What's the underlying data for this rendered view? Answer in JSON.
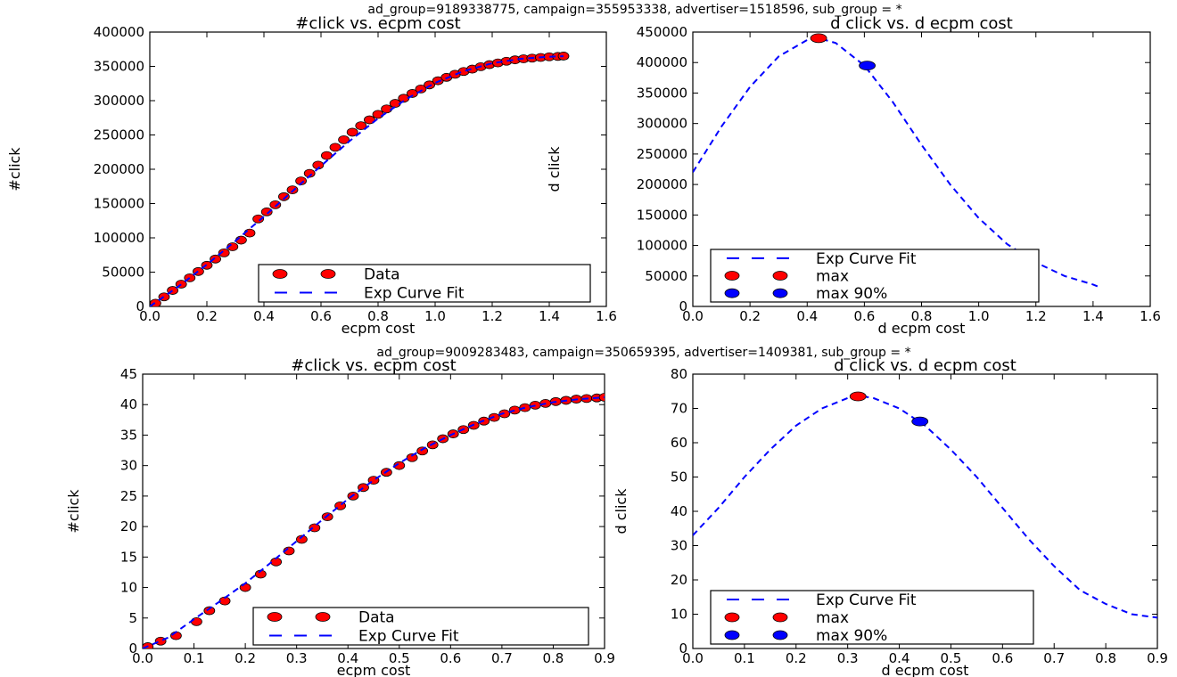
{
  "figure": {
    "group_titles": [
      "ad_group=9189338775, campaign=355953338, advertiser=1518596, sub_group = *",
      "ad_group=9009283483, campaign=350659395, advertiser=1409381, sub_group = *"
    ]
  },
  "colors": {
    "data": "#ff0000",
    "fit": "#0000ff",
    "max": "#ff0000",
    "max90": "#0000ff"
  },
  "chart_data": [
    {
      "type": "scatter",
      "title": "#click vs. ecpm cost",
      "xlabel": "ecpm cost",
      "ylabel": "#click",
      "xlim": [
        0,
        1.6
      ],
      "ylim": [
        0,
        400000
      ],
      "xticks": [
        "0.0",
        "0.2",
        "0.4",
        "0.6",
        "0.8",
        "1.0",
        "1.2",
        "1.4",
        "1.6"
      ],
      "yticks": [
        "0",
        "50000",
        "100000",
        "150000",
        "200000",
        "250000",
        "300000",
        "350000",
        "400000"
      ],
      "legend": {
        "position": "lower-right",
        "entries": [
          "Data",
          "Exp Curve Fit"
        ]
      },
      "series": [
        {
          "name": "Data",
          "kind": "points",
          "x": [
            0.02,
            0.05,
            0.08,
            0.11,
            0.14,
            0.17,
            0.2,
            0.23,
            0.26,
            0.29,
            0.32,
            0.35,
            0.38,
            0.41,
            0.44,
            0.47,
            0.5,
            0.53,
            0.56,
            0.59,
            0.62,
            0.65,
            0.68,
            0.71,
            0.74,
            0.77,
            0.8,
            0.83,
            0.86,
            0.89,
            0.92,
            0.95,
            0.98,
            1.01,
            1.04,
            1.07,
            1.1,
            1.13,
            1.16,
            1.19,
            1.22,
            1.25,
            1.28,
            1.31,
            1.34,
            1.37,
            1.4,
            1.43,
            1.45
          ],
          "y": [
            4700,
            14000,
            23300,
            32500,
            41700,
            50900,
            60000,
            69100,
            78100,
            87000,
            96700,
            107000,
            127600,
            137900,
            148200,
            160000,
            170000,
            183000,
            194000,
            206000,
            220000,
            232000,
            243000,
            254000,
            263500,
            272000,
            280000,
            288000,
            296000,
            303500,
            310500,
            317000,
            323000,
            329000,
            334000,
            338500,
            342500,
            346000,
            349500,
            352500,
            355000,
            357500,
            359500,
            361000,
            362000,
            363000,
            364000,
            364500,
            365000
          ]
        },
        {
          "name": "Exp Curve Fit",
          "kind": "line",
          "style": "dashed",
          "x": [
            0.0,
            0.1,
            0.2,
            0.3,
            0.4,
            0.5,
            0.6,
            0.7,
            0.8,
            0.9,
            1.0,
            1.1,
            1.2,
            1.3,
            1.4,
            1.45
          ],
          "y": [
            0,
            29000,
            61000,
            95500,
            131000,
            168000,
            205000,
            241000,
            274000,
            302500,
            326000,
            343000,
            354500,
            361000,
            364000,
            364800
          ]
        }
      ]
    },
    {
      "type": "scatter",
      "title": "d click vs. d ecpm cost",
      "xlabel": "d ecpm cost",
      "ylabel": "d click",
      "xlim": [
        0,
        1.6
      ],
      "ylim": [
        0,
        450000
      ],
      "xticks": [
        "0.0",
        "0.2",
        "0.4",
        "0.6",
        "0.8",
        "1.0",
        "1.2",
        "1.4",
        "1.6"
      ],
      "yticks": [
        "0",
        "50000",
        "100000",
        "150000",
        "200000",
        "250000",
        "300000",
        "350000",
        "400000",
        "450000"
      ],
      "legend": {
        "position": "lower-center",
        "entries": [
          "Exp Curve Fit",
          "max",
          "max 90%"
        ]
      },
      "series": [
        {
          "name": "Exp Curve Fit",
          "kind": "line",
          "style": "dashed",
          "x": [
            0.0,
            0.1,
            0.2,
            0.3,
            0.4,
            0.44,
            0.5,
            0.6,
            0.7,
            0.8,
            0.9,
            1.0,
            1.1,
            1.2,
            1.3,
            1.4,
            1.42
          ],
          "y": [
            220000,
            295000,
            360000,
            410000,
            437000,
            440000,
            432000,
            395000,
            335000,
            265000,
            200000,
            145000,
            102000,
            72000,
            50000,
            36000,
            32000
          ]
        },
        {
          "name": "max",
          "kind": "marker",
          "x": [
            0.44
          ],
          "y": [
            440000
          ]
        },
        {
          "name": "max 90%",
          "kind": "marker",
          "x": [
            0.61
          ],
          "y": [
            395000
          ]
        }
      ]
    },
    {
      "type": "scatter",
      "title": "#click vs. ecpm cost",
      "xlabel": "ecpm cost",
      "ylabel": "#click",
      "xlim": [
        0,
        0.9
      ],
      "ylim": [
        0,
        45
      ],
      "xticks": [
        "0.0",
        "0.1",
        "0.2",
        "0.3",
        "0.4",
        "0.5",
        "0.6",
        "0.7",
        "0.8",
        "0.9"
      ],
      "yticks": [
        "0",
        "5",
        "10",
        "15",
        "20",
        "25",
        "30",
        "35",
        "40",
        "45"
      ],
      "legend": {
        "position": "lower-right",
        "entries": [
          "Data",
          "Exp Curve Fit"
        ]
      },
      "series": [
        {
          "name": "Data",
          "kind": "points",
          "x": [
            0.01,
            0.035,
            0.065,
            0.105,
            0.13,
            0.16,
            0.2,
            0.23,
            0.26,
            0.285,
            0.31,
            0.335,
            0.36,
            0.385,
            0.41,
            0.43,
            0.45,
            0.475,
            0.5,
            0.525,
            0.545,
            0.565,
            0.585,
            0.605,
            0.625,
            0.645,
            0.665,
            0.685,
            0.705,
            0.725,
            0.745,
            0.765,
            0.785,
            0.805,
            0.825,
            0.845,
            0.865,
            0.885,
            0.9
          ],
          "y": [
            0.3,
            1.2,
            2.1,
            4.4,
            6.2,
            7.8,
            10.0,
            12.2,
            14.2,
            16.0,
            17.9,
            19.8,
            21.6,
            23.4,
            25.0,
            26.4,
            27.6,
            28.9,
            30.0,
            31.3,
            32.4,
            33.4,
            34.4,
            35.2,
            35.9,
            36.6,
            37.3,
            37.9,
            38.5,
            39.1,
            39.5,
            39.9,
            40.2,
            40.5,
            40.7,
            40.9,
            41.0,
            41.1,
            41.2
          ]
        },
        {
          "name": "Exp Curve Fit",
          "kind": "line",
          "style": "dashed",
          "x": [
            0.0,
            0.05,
            0.1,
            0.15,
            0.2,
            0.25,
            0.3,
            0.35,
            0.4,
            0.45,
            0.5,
            0.55,
            0.6,
            0.65,
            0.7,
            0.75,
            0.8,
            0.85,
            0.9
          ],
          "y": [
            0.0,
            1.8,
            4.8,
            7.7,
            10.7,
            14.1,
            17.6,
            21.1,
            24.5,
            27.6,
            30.4,
            32.9,
            35.0,
            36.9,
            38.5,
            39.6,
            40.4,
            40.9,
            41.2
          ]
        }
      ]
    },
    {
      "type": "scatter",
      "title": "d click vs. d ecpm cost",
      "xlabel": "d ecpm cost",
      "ylabel": "d click",
      "xlim": [
        0,
        0.9
      ],
      "ylim": [
        0,
        80
      ],
      "xticks": [
        "0.0",
        "0.1",
        "0.2",
        "0.3",
        "0.4",
        "0.5",
        "0.6",
        "0.7",
        "0.8",
        "0.9"
      ],
      "yticks": [
        "0",
        "10",
        "20",
        "30",
        "40",
        "50",
        "60",
        "70",
        "80"
      ],
      "legend": {
        "position": "lower-left",
        "entries": [
          "Exp Curve Fit",
          "max",
          "max 90%"
        ]
      },
      "series": [
        {
          "name": "Exp Curve Fit",
          "kind": "line",
          "style": "dashed",
          "x": [
            0.0,
            0.05,
            0.1,
            0.15,
            0.2,
            0.25,
            0.3,
            0.33,
            0.35,
            0.4,
            0.45,
            0.5,
            0.55,
            0.6,
            0.65,
            0.7,
            0.75,
            0.8,
            0.85,
            0.9
          ],
          "y": [
            33,
            41,
            50,
            58,
            65,
            70,
            73,
            73.5,
            73,
            70,
            65,
            58,
            50,
            41,
            32,
            24,
            17,
            13,
            10,
            9
          ]
        },
        {
          "name": "max",
          "kind": "marker",
          "x": [
            0.32
          ],
          "y": [
            73.5
          ]
        },
        {
          "name": "max 90%",
          "kind": "marker",
          "x": [
            0.44
          ],
          "y": [
            66.2
          ]
        }
      ]
    }
  ]
}
